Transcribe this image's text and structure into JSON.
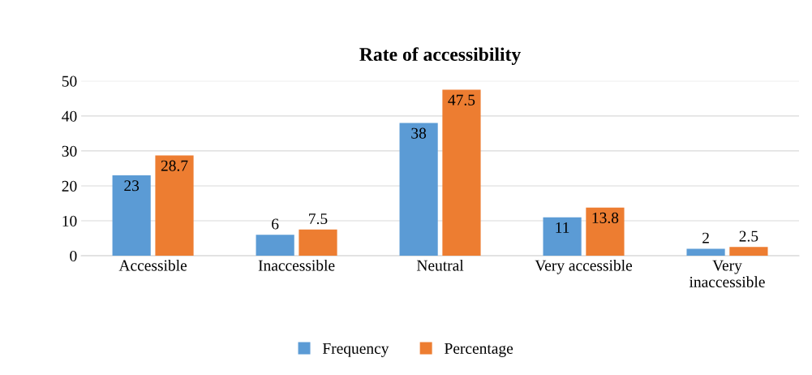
{
  "chart_data": {
    "type": "bar",
    "title": "Rate of accessibility",
    "categories": [
      "Accessible",
      "Inaccessible",
      "Neutral",
      "Very accessible",
      "Very inaccessible"
    ],
    "series": [
      {
        "name": "Frequency",
        "color": "#5b9bd5",
        "values": [
          23,
          6,
          38,
          11,
          2
        ]
      },
      {
        "name": "Percentage",
        "color": "#ed7d31",
        "values": [
          28.7,
          7.5,
          47.5,
          13.8,
          2.5
        ]
      }
    ],
    "ylim": [
      0,
      50
    ],
    "yticks": [
      0,
      10,
      20,
      30,
      40,
      50
    ],
    "grid": "y",
    "legend": "bottom",
    "data_labels": true
  }
}
